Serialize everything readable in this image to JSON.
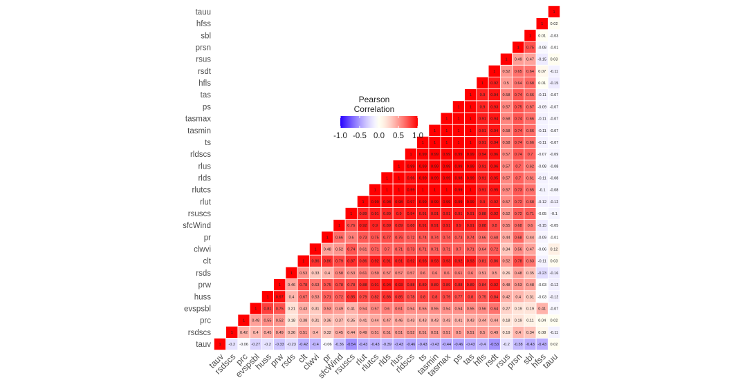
{
  "chart_data": {
    "type": "heatmap",
    "title": "",
    "xlabel": "",
    "ylabel": "",
    "variables": [
      "tauv",
      "rsdscs",
      "prc",
      "evspsbl",
      "huss",
      "prw",
      "rsds",
      "clt",
      "clwvi",
      "pr",
      "sfcWind",
      "rsuscs",
      "rlut",
      "rlutcs",
      "rlds",
      "rlus",
      "rldscs",
      "ts",
      "tasmin",
      "tasmax",
      "ps",
      "tas",
      "hfls",
      "rsdt",
      "rsus",
      "prsn",
      "sbl",
      "hfss",
      "tauu"
    ],
    "matrix_note": "rows[i] lists correlations of variables[i] with variables[i..end]",
    "rows": [
      [
        1,
        -0.2,
        -0.06,
        -0.27,
        -0.2,
        -0.33,
        -0.23,
        -0.42,
        -0.4,
        -0.06,
        -0.36,
        -0.54,
        -0.43,
        -0.43,
        -0.39,
        -0.43,
        -0.46,
        -0.43,
        -0.43,
        -0.44,
        -0.46,
        -0.43,
        -0.4,
        -0.53,
        -0.2,
        -0.38,
        -0.43,
        -0.43,
        0.02
      ],
      [
        1,
        0.42,
        0.4,
        0.45,
        0.49,
        0.36,
        0.51,
        0.4,
        0.32,
        0.45,
        0.44,
        0.49,
        0.51,
        0.51,
        0.51,
        0.52,
        0.51,
        0.51,
        0.51,
        0.5,
        0.51,
        0.5,
        0.49,
        0.19,
        0.4,
        0.34,
        0.08,
        -0.11
      ],
      [
        1,
        0.48,
        0.55,
        0.52,
        0.18,
        0.38,
        0.31,
        0.36,
        0.37,
        0.35,
        0.41,
        0.44,
        0.47,
        0.46,
        0.43,
        0.43,
        0.43,
        0.43,
        0.41,
        0.43,
        0.44,
        0.44,
        0.18,
        0.19,
        0.11,
        0.04,
        0.02
      ],
      [
        1,
        0.81,
        0.75,
        0.21,
        0.43,
        0.31,
        0.53,
        0.49,
        0.41,
        0.54,
        0.57,
        0.6,
        0.61,
        0.54,
        0.55,
        0.55,
        0.54,
        0.54,
        0.55,
        0.56,
        0.64,
        0.27,
        0.19,
        0.19,
        0.41,
        -0.07
      ],
      [
        1,
        0.97,
        0.4,
        0.67,
        0.53,
        0.71,
        0.72,
        0.85,
        0.79,
        0.82,
        0.86,
        0.85,
        0.78,
        0.8,
        0.8,
        0.79,
        0.77,
        0.8,
        0.75,
        0.84,
        0.42,
        0.4,
        0.31,
        -0.03,
        -0.12
      ],
      [
        1,
        0.46,
        0.78,
        0.63,
        0.75,
        0.78,
        0.78,
        0.88,
        0.91,
        0.94,
        0.93,
        0.88,
        0.89,
        0.89,
        0.89,
        0.88,
        0.89,
        0.84,
        0.92,
        0.48,
        0.53,
        0.48,
        -0.03,
        -0.12
      ],
      [
        1,
        0.53,
        0.33,
        0.4,
        0.58,
        0.53,
        0.61,
        0.59,
        0.57,
        0.57,
        0.57,
        0.6,
        0.6,
        0.6,
        0.61,
        0.6,
        0.51,
        0.5,
        0.26,
        0.48,
        0.35,
        -0.23,
        -0.16
      ],
      [
        1,
        0.86,
        0.86,
        0.79,
        0.87,
        0.86,
        0.92,
        0.91,
        0.91,
        0.92,
        0.93,
        0.93,
        0.93,
        0.92,
        0.93,
        0.81,
        0.86,
        0.52,
        0.78,
        0.63,
        -0.11,
        0.03
      ],
      [
        1,
        0.48,
        0.52,
        0.74,
        0.61,
        0.71,
        0.7,
        0.71,
        0.73,
        0.71,
        0.71,
        0.71,
        0.7,
        0.71,
        0.64,
        0.72,
        0.34,
        0.56,
        0.47,
        -0.06,
        0.12
      ],
      [
        1,
        0.66,
        0.6,
        0.73,
        0.75,
        0.77,
        0.76,
        0.72,
        0.74,
        0.74,
        0.74,
        0.73,
        0.74,
        0.66,
        0.68,
        0.44,
        0.68,
        0.44,
        -0.09,
        -0.01
      ],
      [
        1,
        0.76,
        0.92,
        0.9,
        0.89,
        0.89,
        0.88,
        0.91,
        0.91,
        0.91,
        0.9,
        0.91,
        0.88,
        0.8,
        0.55,
        0.68,
        0.6,
        -0.15,
        -0.05
      ],
      [
        1,
        0.89,
        0.91,
        0.89,
        0.9,
        0.94,
        0.91,
        0.91,
        0.91,
        0.91,
        0.91,
        0.88,
        0.92,
        0.52,
        0.72,
        0.71,
        -0.05,
        -0.1
      ],
      [
        1,
        0.99,
        0.98,
        0.98,
        0.97,
        0.99,
        0.99,
        0.99,
        0.99,
        0.99,
        0.9,
        0.92,
        0.57,
        0.72,
        0.68,
        -0.12,
        -0.12
      ],
      [
        1,
        1,
        1,
        0.99,
        1,
        1,
        1,
        0.99,
        1,
        0.91,
        0.95,
        0.57,
        0.73,
        0.65,
        -0.1,
        -0.08
      ],
      [
        1,
        1,
        0.96,
        0.99,
        0.99,
        0.99,
        0.98,
        0.99,
        0.91,
        0.95,
        0.57,
        0.7,
        0.61,
        -0.11,
        -0.08
      ],
      [
        1,
        0.99,
        0.99,
        0.99,
        0.99,
        0.99,
        0.99,
        0.91,
        0.96,
        0.57,
        0.7,
        0.62,
        -0.08,
        -0.08
      ],
      [
        1,
        0.99,
        0.99,
        0.99,
        0.99,
        0.99,
        0.94,
        0.96,
        0.57,
        0.74,
        0.7,
        -0.07,
        -0.09
      ],
      [
        1,
        1,
        1,
        1,
        1,
        0.91,
        0.94,
        0.58,
        0.74,
        0.66,
        -0.11,
        -0.07
      ],
      [
        1,
        1,
        1,
        1,
        0.91,
        0.94,
        0.58,
        0.74,
        0.66,
        -0.11,
        -0.07
      ],
      [
        1,
        1,
        1,
        0.91,
        0.94,
        0.58,
        0.74,
        0.66,
        -0.11,
        -0.07
      ],
      [
        1,
        1,
        0.9,
        0.93,
        0.57,
        0.75,
        0.67,
        -0.09,
        -0.07
      ],
      [
        1,
        0.9,
        0.94,
        0.58,
        0.74,
        0.66,
        -0.11,
        -0.07
      ],
      [
        1,
        0.92,
        0.5,
        0.64,
        0.68,
        0.01,
        -0.15
      ],
      [
        1,
        0.52,
        0.65,
        0.64,
        0.07,
        -0.11
      ],
      [
        1,
        0.49,
        0.47,
        -0.15,
        0.03
      ],
      [
        1,
        0.75,
        -0.08,
        -0.01
      ],
      [
        1,
        0.01,
        -0.03
      ],
      [
        1,
        0.02
      ],
      [
        1
      ]
    ],
    "legend": {
      "title_line1": "Pearson",
      "title_line2": "Correlation",
      "ticks": [
        "-1.0",
        "-0.5",
        "0.0",
        "0.5",
        "1.0"
      ],
      "tick_values": [
        -1,
        -0.5,
        0,
        0.5,
        1
      ],
      "placement": "top-center"
    },
    "value_range": [
      -1,
      1
    ],
    "colors": {
      "low": "#0000FF",
      "mid": "#FFFFFF",
      "high": "#FF0000"
    }
  }
}
